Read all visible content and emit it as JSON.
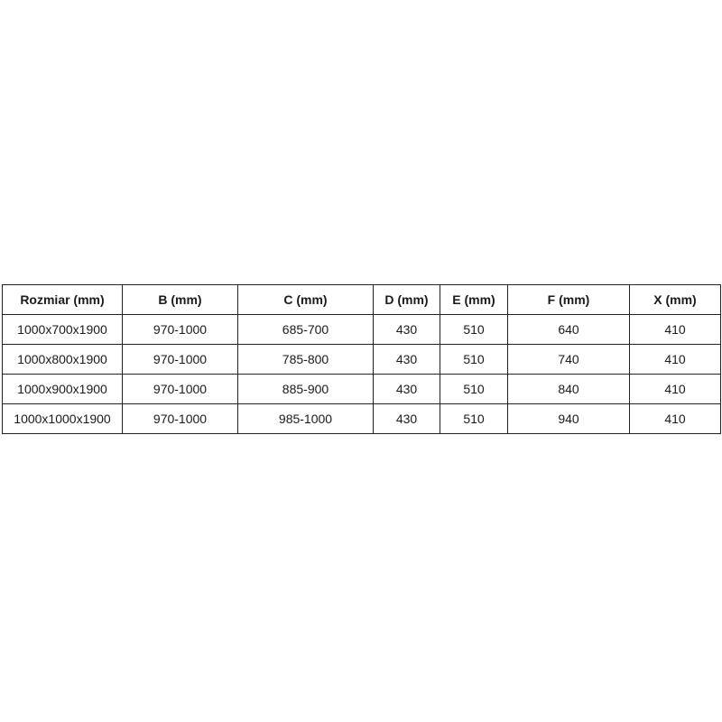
{
  "table": {
    "headers": [
      "Rozmiar (mm)",
      "B (mm)",
      "C (mm)",
      "D (mm)",
      "E (mm)",
      "F (mm)",
      "X (mm)"
    ],
    "rows": [
      [
        "1000x700x1900",
        "970-1000",
        "685-700",
        "430",
        "510",
        "640",
        "410"
      ],
      [
        "1000x800x1900",
        "970-1000",
        "785-800",
        "430",
        "510",
        "740",
        "410"
      ],
      [
        "1000x900x1900",
        "970-1000",
        "885-900",
        "430",
        "510",
        "840",
        "410"
      ],
      [
        "1000x1000x1900",
        "970-1000",
        "985-1000",
        "430",
        "510",
        "940",
        "410"
      ]
    ]
  }
}
